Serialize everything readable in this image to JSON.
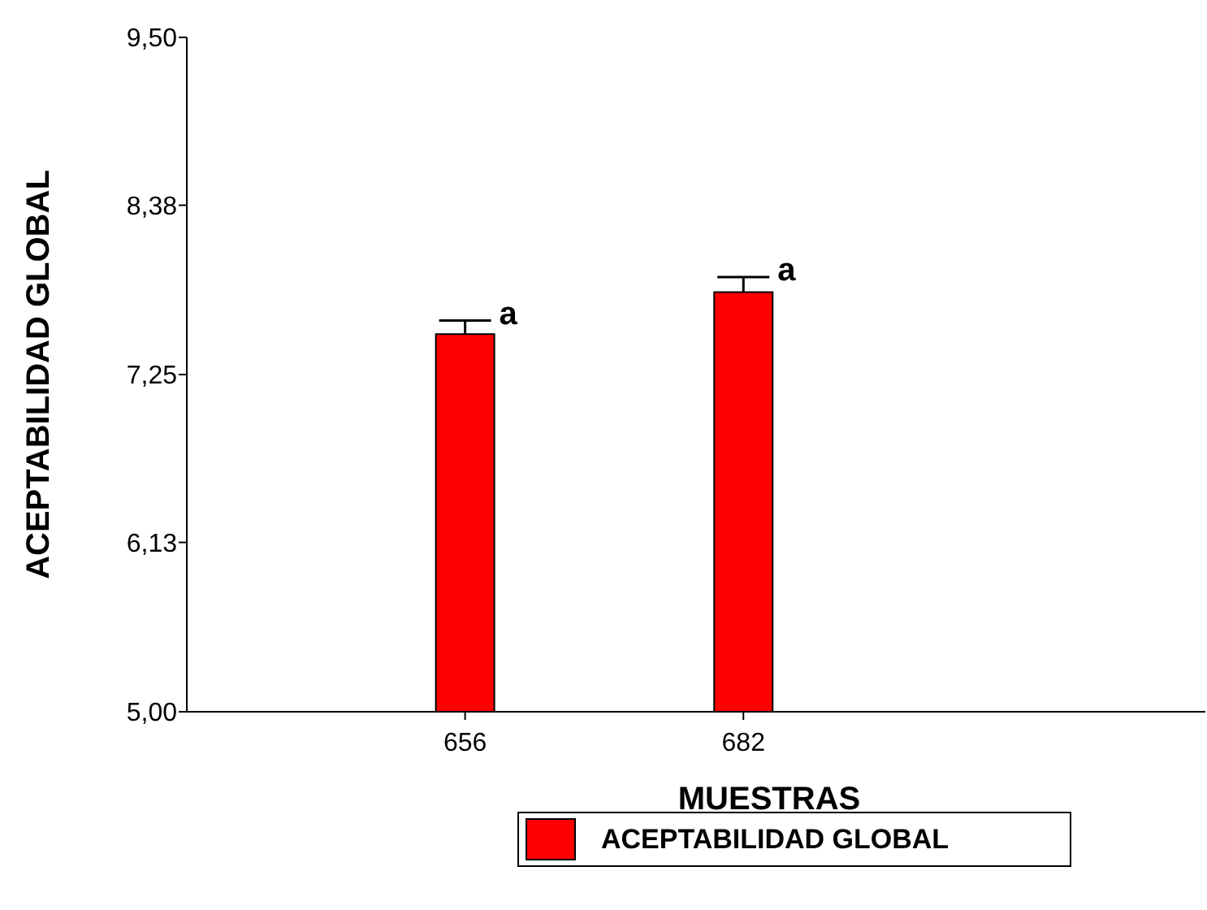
{
  "chart_data": {
    "type": "bar",
    "xlabel": "MUESTRAS",
    "ylabel": "ACEPTABILIDAD GLOBAL",
    "categories": [
      "656",
      "682"
    ],
    "series": [
      {
        "name": "ACEPTABILIDAD GLOBAL",
        "color": "#ff0000",
        "values": [
          7.52,
          7.8
        ],
        "errors": [
          [
            7.52,
            7.61
          ],
          [
            7.8,
            7.9
          ]
        ]
      }
    ],
    "ylim": [
      5,
      9.5
    ],
    "yticks": [
      {
        "value": 5,
        "label": "5,00"
      },
      {
        "value": 6.13,
        "label": "6,13"
      },
      {
        "value": 7.25,
        "label": "7,25"
      },
      {
        "value": 8.38,
        "label": "8,38"
      },
      {
        "value": 9.5,
        "label": "9,50"
      }
    ],
    "annotations": [
      "a",
      "a"
    ],
    "grid": false,
    "legend": "bottom"
  }
}
